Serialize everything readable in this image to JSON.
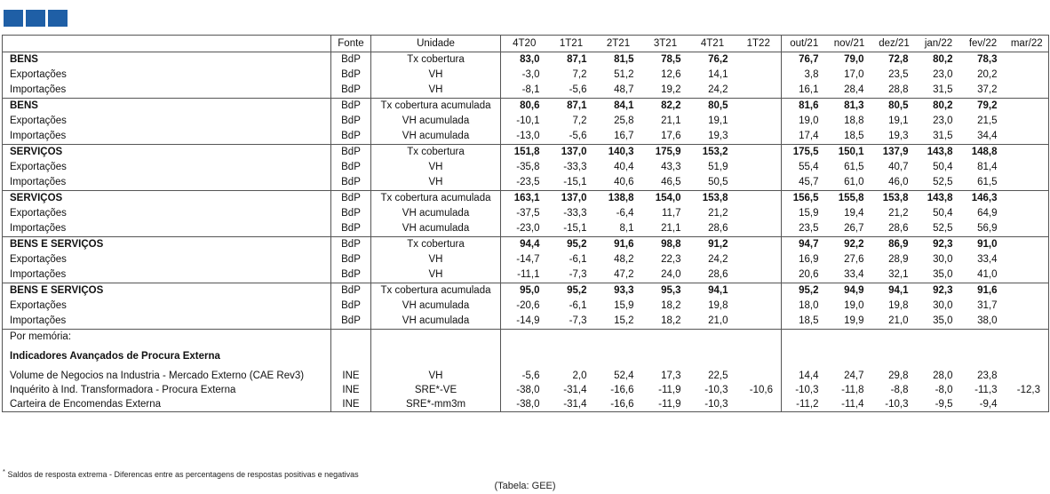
{
  "header": {
    "label": "",
    "source": "Fonte",
    "unit": "Unidade",
    "periods": [
      "4T20",
      "1T21",
      "2T21",
      "3T21",
      "4T21",
      "1T22",
      "out/21",
      "nov/21",
      "dez/21",
      "jan/22",
      "fev/22",
      "mar/22"
    ]
  },
  "groups": [
    {
      "rows": [
        {
          "label": "BENS",
          "source": "BdP",
          "unit": "Tx cobertura",
          "bold": true,
          "values": [
            "83,0",
            "87,1",
            "81,5",
            "78,5",
            "76,2",
            "",
            "76,7",
            "79,0",
            "72,8",
            "80,2",
            "78,3",
            ""
          ]
        },
        {
          "label": "Exportações",
          "source": "BdP",
          "unit": "VH",
          "values": [
            "-3,0",
            "7,2",
            "51,2",
            "12,6",
            "14,1",
            "",
            "3,8",
            "17,0",
            "23,5",
            "23,0",
            "20,2",
            ""
          ]
        },
        {
          "label": "Importações",
          "source": "BdP",
          "unit": "VH",
          "values": [
            "-8,1",
            "-5,6",
            "48,7",
            "19,2",
            "24,2",
            "",
            "16,1",
            "28,4",
            "28,8",
            "31,5",
            "37,2",
            ""
          ]
        }
      ]
    },
    {
      "rows": [
        {
          "label": "BENS",
          "source": "BdP",
          "unit": "Tx cobertura acumulada",
          "bold": true,
          "values": [
            "80,6",
            "87,1",
            "84,1",
            "82,2",
            "80,5",
            "",
            "81,6",
            "81,3",
            "80,5",
            "80,2",
            "79,2",
            ""
          ]
        },
        {
          "label": "Exportações",
          "source": "BdP",
          "unit": "VH acumulada",
          "values": [
            "-10,1",
            "7,2",
            "25,8",
            "21,1",
            "19,1",
            "",
            "19,0",
            "18,8",
            "19,1",
            "23,0",
            "21,5",
            ""
          ]
        },
        {
          "label": "Importações",
          "source": "BdP",
          "unit": "VH acumulada",
          "values": [
            "-13,0",
            "-5,6",
            "16,7",
            "17,6",
            "19,3",
            "",
            "17,4",
            "18,5",
            "19,3",
            "31,5",
            "34,4",
            ""
          ]
        }
      ]
    },
    {
      "rows": [
        {
          "label": "SERVIÇOS",
          "source": "BdP",
          "unit": "Tx cobertura",
          "bold": true,
          "values": [
            "151,8",
            "137,0",
            "140,3",
            "175,9",
            "153,2",
            "",
            "175,5",
            "150,1",
            "137,9",
            "143,8",
            "148,8",
            ""
          ]
        },
        {
          "label": "Exportações",
          "source": "BdP",
          "unit": "VH",
          "values": [
            "-35,8",
            "-33,3",
            "40,4",
            "43,3",
            "51,9",
            "",
            "55,4",
            "61,5",
            "40,7",
            "50,4",
            "81,4",
            ""
          ]
        },
        {
          "label": "Importações",
          "source": "BdP",
          "unit": "VH",
          "values": [
            "-23,5",
            "-15,1",
            "40,6",
            "46,5",
            "50,5",
            "",
            "45,7",
            "61,0",
            "46,0",
            "52,5",
            "61,5",
            ""
          ]
        }
      ]
    },
    {
      "rows": [
        {
          "label": "SERVIÇOS",
          "source": "BdP",
          "unit": "Tx cobertura acumulada",
          "bold": true,
          "values": [
            "163,1",
            "137,0",
            "138,8",
            "154,0",
            "153,8",
            "",
            "156,5",
            "155,8",
            "153,8",
            "143,8",
            "146,3",
            ""
          ]
        },
        {
          "label": "Exportações",
          "source": "BdP",
          "unit": "VH acumulada",
          "values": [
            "-37,5",
            "-33,3",
            "-6,4",
            "11,7",
            "21,2",
            "",
            "15,9",
            "19,4",
            "21,2",
            "50,4",
            "64,9",
            ""
          ]
        },
        {
          "label": "Importações",
          "source": "BdP",
          "unit": "VH acumulada",
          "values": [
            "-23,0",
            "-15,1",
            "8,1",
            "21,1",
            "28,6",
            "",
            "23,5",
            "26,7",
            "28,6",
            "52,5",
            "56,9",
            ""
          ]
        }
      ]
    },
    {
      "rows": [
        {
          "label": "BENS E SERVIÇOS",
          "source": "BdP",
          "unit": "Tx cobertura",
          "bold": true,
          "values": [
            "94,4",
            "95,2",
            "91,6",
            "98,8",
            "91,2",
            "",
            "94,7",
            "92,2",
            "86,9",
            "92,3",
            "91,0",
            ""
          ]
        },
        {
          "label": "Exportações",
          "source": "BdP",
          "unit": "VH",
          "values": [
            "-14,7",
            "-6,1",
            "48,2",
            "22,3",
            "24,2",
            "",
            "16,9",
            "27,6",
            "28,9",
            "30,0",
            "33,4",
            ""
          ]
        },
        {
          "label": "Importações",
          "source": "BdP",
          "unit": "VH",
          "values": [
            "-11,1",
            "-7,3",
            "47,2",
            "24,0",
            "28,6",
            "",
            "20,6",
            "33,4",
            "32,1",
            "35,0",
            "41,0",
            ""
          ]
        }
      ]
    },
    {
      "rows": [
        {
          "label": "BENS E SERVIÇOS",
          "source": "BdP",
          "unit": "Tx cobertura acumulada",
          "bold": true,
          "values": [
            "95,0",
            "95,2",
            "93,3",
            "95,3",
            "94,1",
            "",
            "95,2",
            "94,9",
            "94,1",
            "92,3",
            "91,6",
            ""
          ]
        },
        {
          "label": "Exportações",
          "source": "BdP",
          "unit": "VH acumulada",
          "values": [
            "-20,6",
            "-6,1",
            "15,9",
            "18,2",
            "19,8",
            "",
            "18,0",
            "19,0",
            "19,8",
            "30,0",
            "31,7",
            ""
          ]
        },
        {
          "label": "Importações",
          "source": "BdP",
          "unit": "VH acumulada",
          "values": [
            "-14,9",
            "-7,3",
            "15,2",
            "18,2",
            "21,0",
            "",
            "18,5",
            "19,9",
            "21,0",
            "35,0",
            "38,0",
            ""
          ]
        }
      ]
    }
  ],
  "memo": {
    "title": "Por memória:",
    "subtitle": "Indicadores Avançados de Procura Externa",
    "rows": [
      {
        "label": "Volume de Negocios na Industria - Mercado Externo (CAE Rev3)",
        "source": "INE",
        "unit": "VH",
        "values": [
          "-5,6",
          "2,0",
          "52,4",
          "17,3",
          "22,5",
          "",
          "14,4",
          "24,7",
          "29,8",
          "28,0",
          "23,8",
          ""
        ]
      },
      {
        "label": "Inquérito à Ind. Transformadora - Procura Externa",
        "source": "INE",
        "unit": "SRE*-VE",
        "values": [
          "-38,0",
          "-31,4",
          "-16,6",
          "-11,9",
          "-10,3",
          "-10,6",
          "-10,3",
          "-11,8",
          "-8,8",
          "-8,0",
          "-11,3",
          "-12,3"
        ]
      },
      {
        "label": "Carteira de Encomendas Externa",
        "source": "INE",
        "unit": "SRE*-mm3m",
        "values": [
          "-38,0",
          "-31,4",
          "-16,6",
          "-11,9",
          "-10,3",
          "",
          "-11,2",
          "-11,4",
          "-10,3",
          "-9,5",
          "-9,4",
          ""
        ]
      }
    ]
  },
  "footnote": "Saldos de resposta extrema - Diferencas entre as percentagens de respostas positivas e negativas",
  "footnote_mark": "*",
  "source_note": "(Tabela: GEE)",
  "colors": {
    "logo": "#1f5fa6",
    "rule": "#555555"
  },
  "icons": [
    "logo-square-icon",
    "logo-square-icon",
    "logo-square-icon"
  ]
}
